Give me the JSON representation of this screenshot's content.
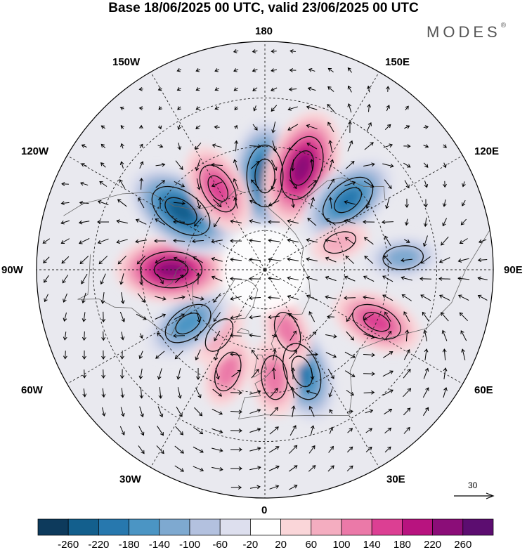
{
  "header": {
    "title": "Base 18/06/2025 00 UTC, valid 23/06/2025 00 UTC",
    "brand": "MODES",
    "brand_mark": "®"
  },
  "map": {
    "projection": "north-polar-stereographic",
    "longitude_labels": {
      "top": "180",
      "top_left": "150W",
      "top_right": "150E",
      "upper_left": "120W",
      "upper_right": "120E",
      "left": "90W",
      "right": "90E",
      "lower_left": "60W",
      "lower_right": "60E",
      "bottom_left": "30W",
      "bottom_right": "30E",
      "bottom": "0"
    },
    "anomaly_centres": [
      {
        "kind": "negative",
        "lon": 180,
        "lat": 55,
        "value": -220
      },
      {
        "kind": "positive",
        "lon": 160,
        "lat": 50,
        "value": 240
      },
      {
        "kind": "negative",
        "lon": 130,
        "lat": 50,
        "value": -200
      },
      {
        "kind": "negative",
        "lon": 95,
        "lat": 40,
        "value": -100
      },
      {
        "kind": "positive",
        "lon": 110,
        "lat": 60,
        "value": 60
      },
      {
        "kind": "positive",
        "lon": 65,
        "lat": 45,
        "value": 160
      },
      {
        "kind": "negative",
        "lon": 20,
        "lat": 50,
        "value": -200
      },
      {
        "kind": "positive",
        "lon": 20,
        "lat": 65,
        "value": 100
      },
      {
        "kind": "positive",
        "lon": 5,
        "lat": 50,
        "value": 120
      },
      {
        "kind": "positive",
        "lon": -20,
        "lat": 50,
        "value": 100
      },
      {
        "kind": "positive",
        "lon": -35,
        "lat": 60,
        "value": 80
      },
      {
        "kind": "negative",
        "lon": -55,
        "lat": 55,
        "value": -160
      },
      {
        "kind": "positive",
        "lon": -90,
        "lat": 55,
        "value": 220
      },
      {
        "kind": "negative",
        "lon": -125,
        "lat": 52,
        "value": -240
      },
      {
        "kind": "positive",
        "lon": -150,
        "lat": 55,
        "value": 160
      }
    ],
    "reference_vector": {
      "label": "30",
      "arrow_icon": "arrow-right-icon"
    }
  },
  "colorbar": {
    "tick_labels": [
      "-260",
      "-220",
      "-180",
      "-140",
      "-100",
      "-60",
      "-20",
      "20",
      "60",
      "100",
      "140",
      "180",
      "220",
      "260"
    ],
    "colors": [
      "#0d3a5c",
      "#135f8d",
      "#2778ae",
      "#4b95c4",
      "#7ea9d0",
      "#b3c1df",
      "#dddfee",
      "#ffffff",
      "#fad6d9",
      "#f4adc0",
      "#eb79a8",
      "#dc3f93",
      "#b8137f",
      "#8b0d78",
      "#5c0d70"
    ]
  }
}
